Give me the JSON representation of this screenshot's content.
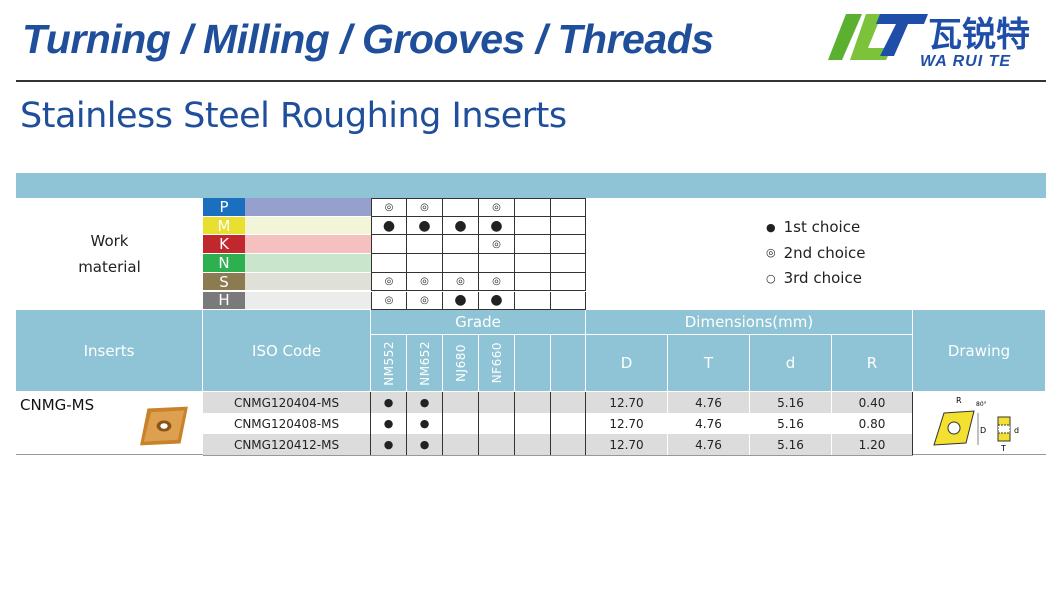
{
  "header": {
    "title": "Turning / Milling / Grooves / Threads"
  },
  "logo": {
    "chinese": "瓦锐特",
    "latin": "WA RUI TE"
  },
  "page_title": "Stainless Steel Roughing Inserts",
  "work_material": {
    "label": "Work\nmaterial",
    "rows": [
      {
        "letter": "P",
        "color": "#1a6fbf",
        "bar": "#979fcf",
        "marks": [
          "2",
          "2",
          "",
          "2",
          "",
          ""
        ]
      },
      {
        "letter": "M",
        "color": "#e8e030",
        "bar": "#f2f5d8",
        "marks": [
          "1",
          "1",
          "1",
          "1",
          "",
          ""
        ]
      },
      {
        "letter": "K",
        "color": "#c0282d",
        "bar": "#f5c0c0",
        "marks": [
          "",
          "",
          "",
          "2",
          "",
          ""
        ]
      },
      {
        "letter": "N",
        "color": "#2fb050",
        "bar": "#c9e5cb",
        "marks": [
          "",
          "",
          "",
          "",
          "",
          ""
        ]
      },
      {
        "letter": "S",
        "color": "#8c7a50",
        "bar": "#dfe0d8",
        "marks": [
          "2",
          "2",
          "2",
          "2",
          "",
          ""
        ]
      },
      {
        "letter": "H",
        "color": "#7a7a7a",
        "bar": "#ececec",
        "marks": [
          "2",
          "2",
          "1",
          "1",
          "",
          ""
        ]
      }
    ]
  },
  "legend": [
    {
      "symbol": "●",
      "label": "1st choice"
    },
    {
      "symbol": "◎",
      "label": "2nd choice"
    },
    {
      "symbol": "○",
      "label": "3rd choice"
    }
  ],
  "table": {
    "headers": {
      "inserts": "Inserts",
      "iso": "ISO Code",
      "grade": "Grade",
      "dimensions": "Dimensions(mm)",
      "drawing": "Drawing"
    },
    "grades": [
      "NM552",
      "NM652",
      "NJ680",
      "NF660",
      "",
      ""
    ],
    "dims": [
      "D",
      "T",
      "d",
      "R"
    ],
    "insert_name": "CNMG-MS",
    "rows": [
      {
        "iso": "CNMG120404-MS",
        "marks": [
          "●",
          "●",
          "",
          "",
          "",
          ""
        ],
        "D": "12.70",
        "T": "4.76",
        "d": "5.16",
        "R": "0.40"
      },
      {
        "iso": "CNMG120408-MS",
        "marks": [
          "●",
          "●",
          "",
          "",
          "",
          ""
        ],
        "D": "12.70",
        "T": "4.76",
        "d": "5.16",
        "R": "0.80"
      },
      {
        "iso": "CNMG120412-MS",
        "marks": [
          "●",
          "●",
          "",
          "",
          "",
          ""
        ],
        "D": "12.70",
        "T": "4.76",
        "d": "5.16",
        "R": "1.20"
      }
    ]
  },
  "drawing": {
    "labels": {
      "R": "R",
      "angle": "80°",
      "D": "D",
      "d": "d",
      "T": "T"
    }
  },
  "colors": {
    "accent": "#1f4e9a",
    "header_bg": "#8fc4d6",
    "row_shade": "#dcdcdc"
  }
}
